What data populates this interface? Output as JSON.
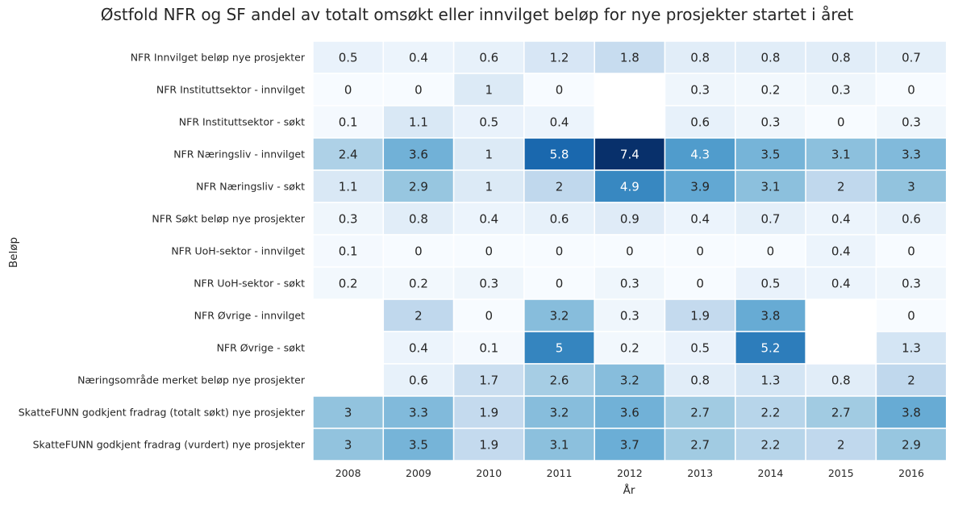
{
  "chart_data": {
    "type": "heatmap",
    "title": "Østfold NFR og SF andel av totalt omsøkt eller innvilget beløp for nye prosjekter startet i året",
    "xlabel": "År",
    "ylabel": "Beløp",
    "x": [
      "2008",
      "2009",
      "2010",
      "2011",
      "2012",
      "2013",
      "2014",
      "2015",
      "2016"
    ],
    "y": [
      "NFR Innvilget beløp nye prosjekter",
      "NFR Instituttsektor - innvilget",
      "NFR Instituttsektor - søkt",
      "NFR Næringsliv - innvilget",
      "NFR Næringsliv - søkt",
      "NFR Søkt beløp nye prosjekter",
      "NFR UoH-sektor - innvilget",
      "NFR UoH-sektor - søkt",
      "NFR Øvrige - innvilget",
      "NFR Øvrige - søkt",
      "Næringsområde merket beløp nye prosjekter",
      "SkatteFUNN godkjent fradrag (totalt søkt) nye prosjekter",
      "SkatteFUNN godkjent fradrag (vurdert) nye prosjekter"
    ],
    "values": [
      [
        0.5,
        0.4,
        0.6,
        1.2,
        1.8,
        0.8,
        0.8,
        0.8,
        0.7
      ],
      [
        0,
        0,
        1,
        0,
        null,
        0.3,
        0.2,
        0.3,
        0
      ],
      [
        0.1,
        1.1,
        0.5,
        0.4,
        null,
        0.6,
        0.3,
        0,
        0.3
      ],
      [
        2.4,
        3.6,
        1,
        5.8,
        7.4,
        4.3,
        3.5,
        3.1,
        3.3
      ],
      [
        1.1,
        2.9,
        1,
        2,
        4.9,
        3.9,
        3.1,
        2,
        3
      ],
      [
        0.3,
        0.8,
        0.4,
        0.6,
        0.9,
        0.4,
        0.7,
        0.4,
        0.6
      ],
      [
        0.1,
        0,
        0,
        0,
        0,
        0,
        0,
        0.4,
        0
      ],
      [
        0.2,
        0.2,
        0.3,
        0,
        0.3,
        0,
        0.5,
        0.4,
        0.3
      ],
      [
        null,
        2,
        0,
        3.2,
        0.3,
        1.9,
        3.8,
        null,
        0
      ],
      [
        null,
        0.4,
        0.1,
        5,
        0.2,
        0.5,
        5.2,
        null,
        1.3
      ],
      [
        null,
        0.6,
        1.7,
        2.6,
        3.2,
        0.8,
        1.3,
        0.8,
        2
      ],
      [
        3,
        3.3,
        1.9,
        3.2,
        3.6,
        2.7,
        2.2,
        2.7,
        3.8
      ],
      [
        3,
        3.5,
        1.9,
        3.1,
        3.7,
        2.7,
        2.2,
        2,
        2.9
      ]
    ],
    "colormap": "Blues",
    "vmin": 0,
    "vmax": 7.4,
    "grid": false,
    "annotations": true
  }
}
